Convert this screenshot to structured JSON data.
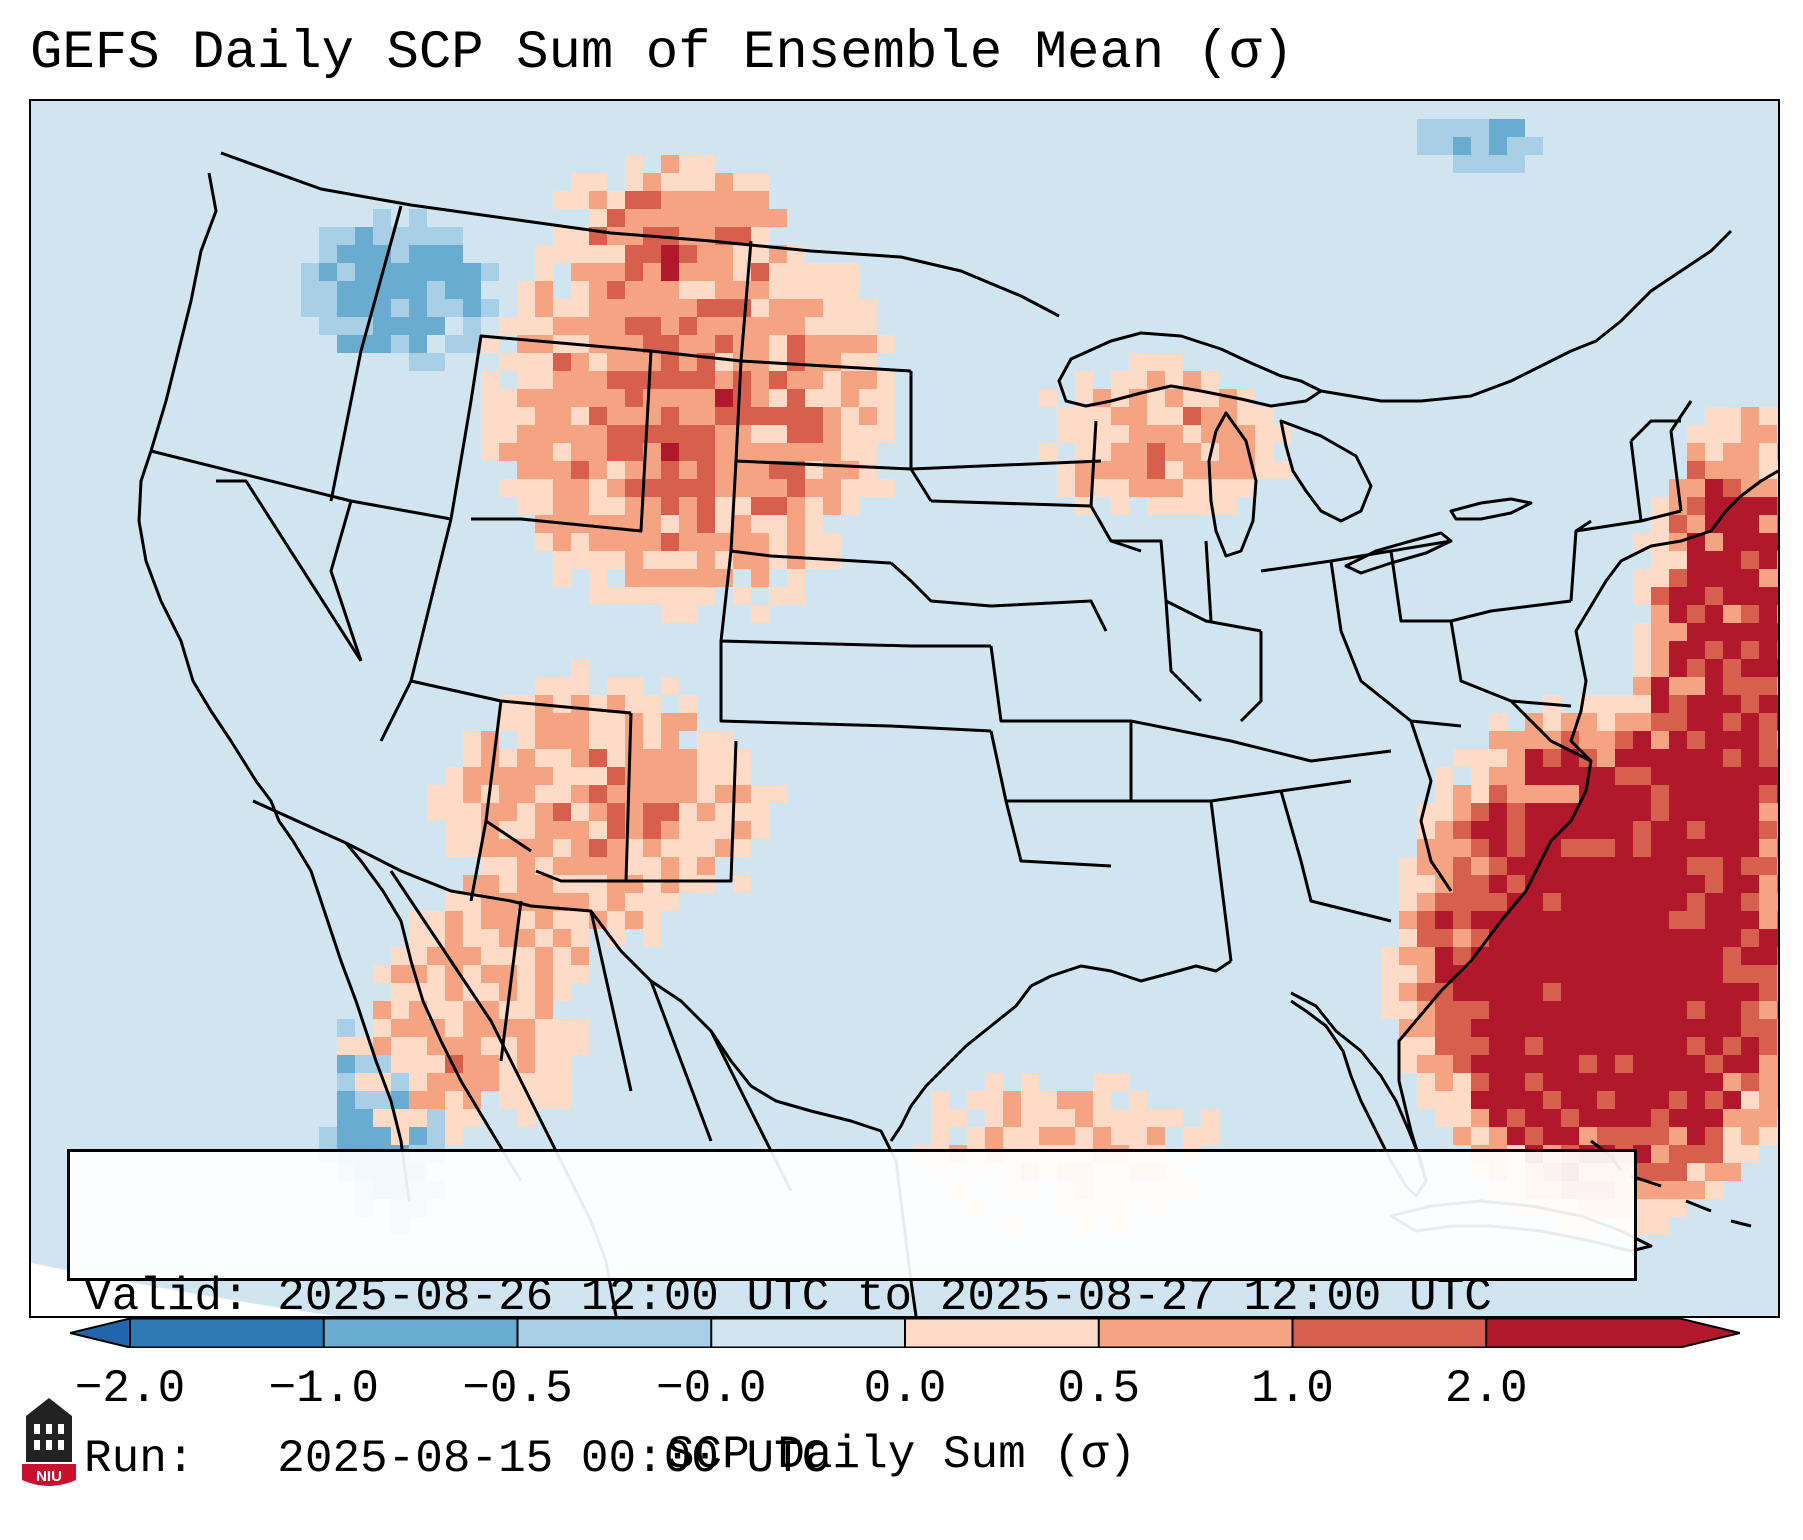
{
  "title": "GEFS Daily SCP Sum of Ensemble Mean (σ)",
  "info_box": {
    "valid": "Valid: 2025-08-26 12:00 UTC to 2025-08-27 12:00 UTC",
    "run": "Run:   2025-08-15 00:00 UTC"
  },
  "colorbar": {
    "label": "SCP Daily Sum (σ)",
    "ticks": [
      "−2.0",
      "−1.0",
      "−0.5",
      "−0.0",
      "0.0",
      "0.5",
      "1.0",
      "2.0"
    ],
    "colors": [
      "#2f79b5",
      "#6aacd0",
      "#a8cfe5",
      "#d1e5f0",
      "#fddbc7",
      "#f4a482",
      "#d6604d",
      "#b2182b"
    ],
    "extend_low": "#2166ac",
    "extend_high": "#b2182b"
  },
  "logo": {
    "text": "NIU",
    "color": "#c8102e",
    "icon": "university-tower-icon"
  },
  "map_colors": {
    "background_category": "#d1e5f0",
    "outline": "#000000"
  }
}
